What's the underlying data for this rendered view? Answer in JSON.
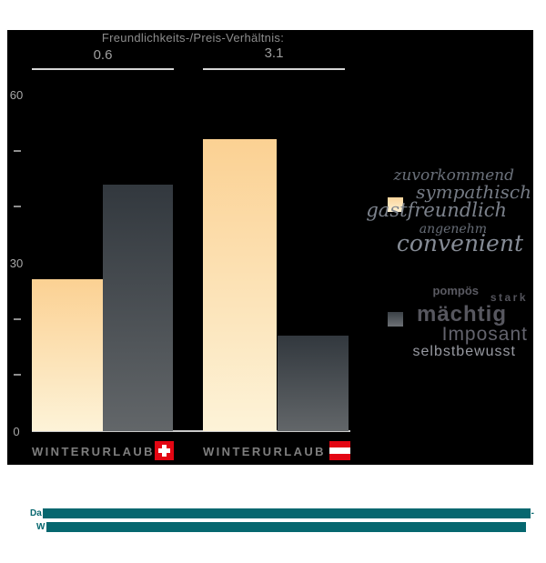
{
  "chart_data": {
    "type": "bar",
    "title": "Freundlichkeits-/Preis-Verhältnis:",
    "categories": [
      "WINTERURLAUB",
      "WINTERURLAUB"
    ],
    "category_flags": [
      "swiss-flag",
      "austrian-flag"
    ],
    "ratio_labels": [
      "0.6",
      "3.1"
    ],
    "series": [
      {
        "name": "freundlich (helle Balken)",
        "values": [
          27,
          52
        ],
        "swatch_gradient": [
          "#fcd59c",
          "#fdf1d3"
        ],
        "legend_words": [
          "zuvorkommend",
          "sympathisch",
          "gastfreundlich",
          "angenehm",
          "convenient"
        ]
      },
      {
        "name": "imposant (dunkle Balken)",
        "values": [
          44,
          17
        ],
        "swatch_gradient": [
          "#3a4046",
          "#6d7176"
        ],
        "legend_words": [
          "pompös",
          "stark",
          "mächtig",
          "Imposant",
          "selbstbewusst"
        ]
      }
    ],
    "ylim": [
      0,
      60
    ],
    "ytick_labels": [
      60,
      30,
      0
    ],
    "ytick_minor": [
      50,
      40,
      20,
      10
    ],
    "grid": false,
    "legend_position": "right",
    "plot_background": "#000000"
  },
  "colors": {
    "panel": "#000000",
    "title_gray": "#8c8c8c",
    "axis_gray": "#a8a8a8",
    "bar_cream_top": "#fbd193",
    "bar_cream_bottom": "#fdf3d8",
    "bar_dark_top": "#32383e",
    "bar_dark_bottom": "#626669",
    "flag_red": "#e30613",
    "caption_teal": "#06676f"
  },
  "caption": {
    "line1_prefix": "Da",
    "line1_suffix": "-",
    "line2_prefix": "W",
    "note": "remaining caption text is redacted (solid teal bars)"
  }
}
